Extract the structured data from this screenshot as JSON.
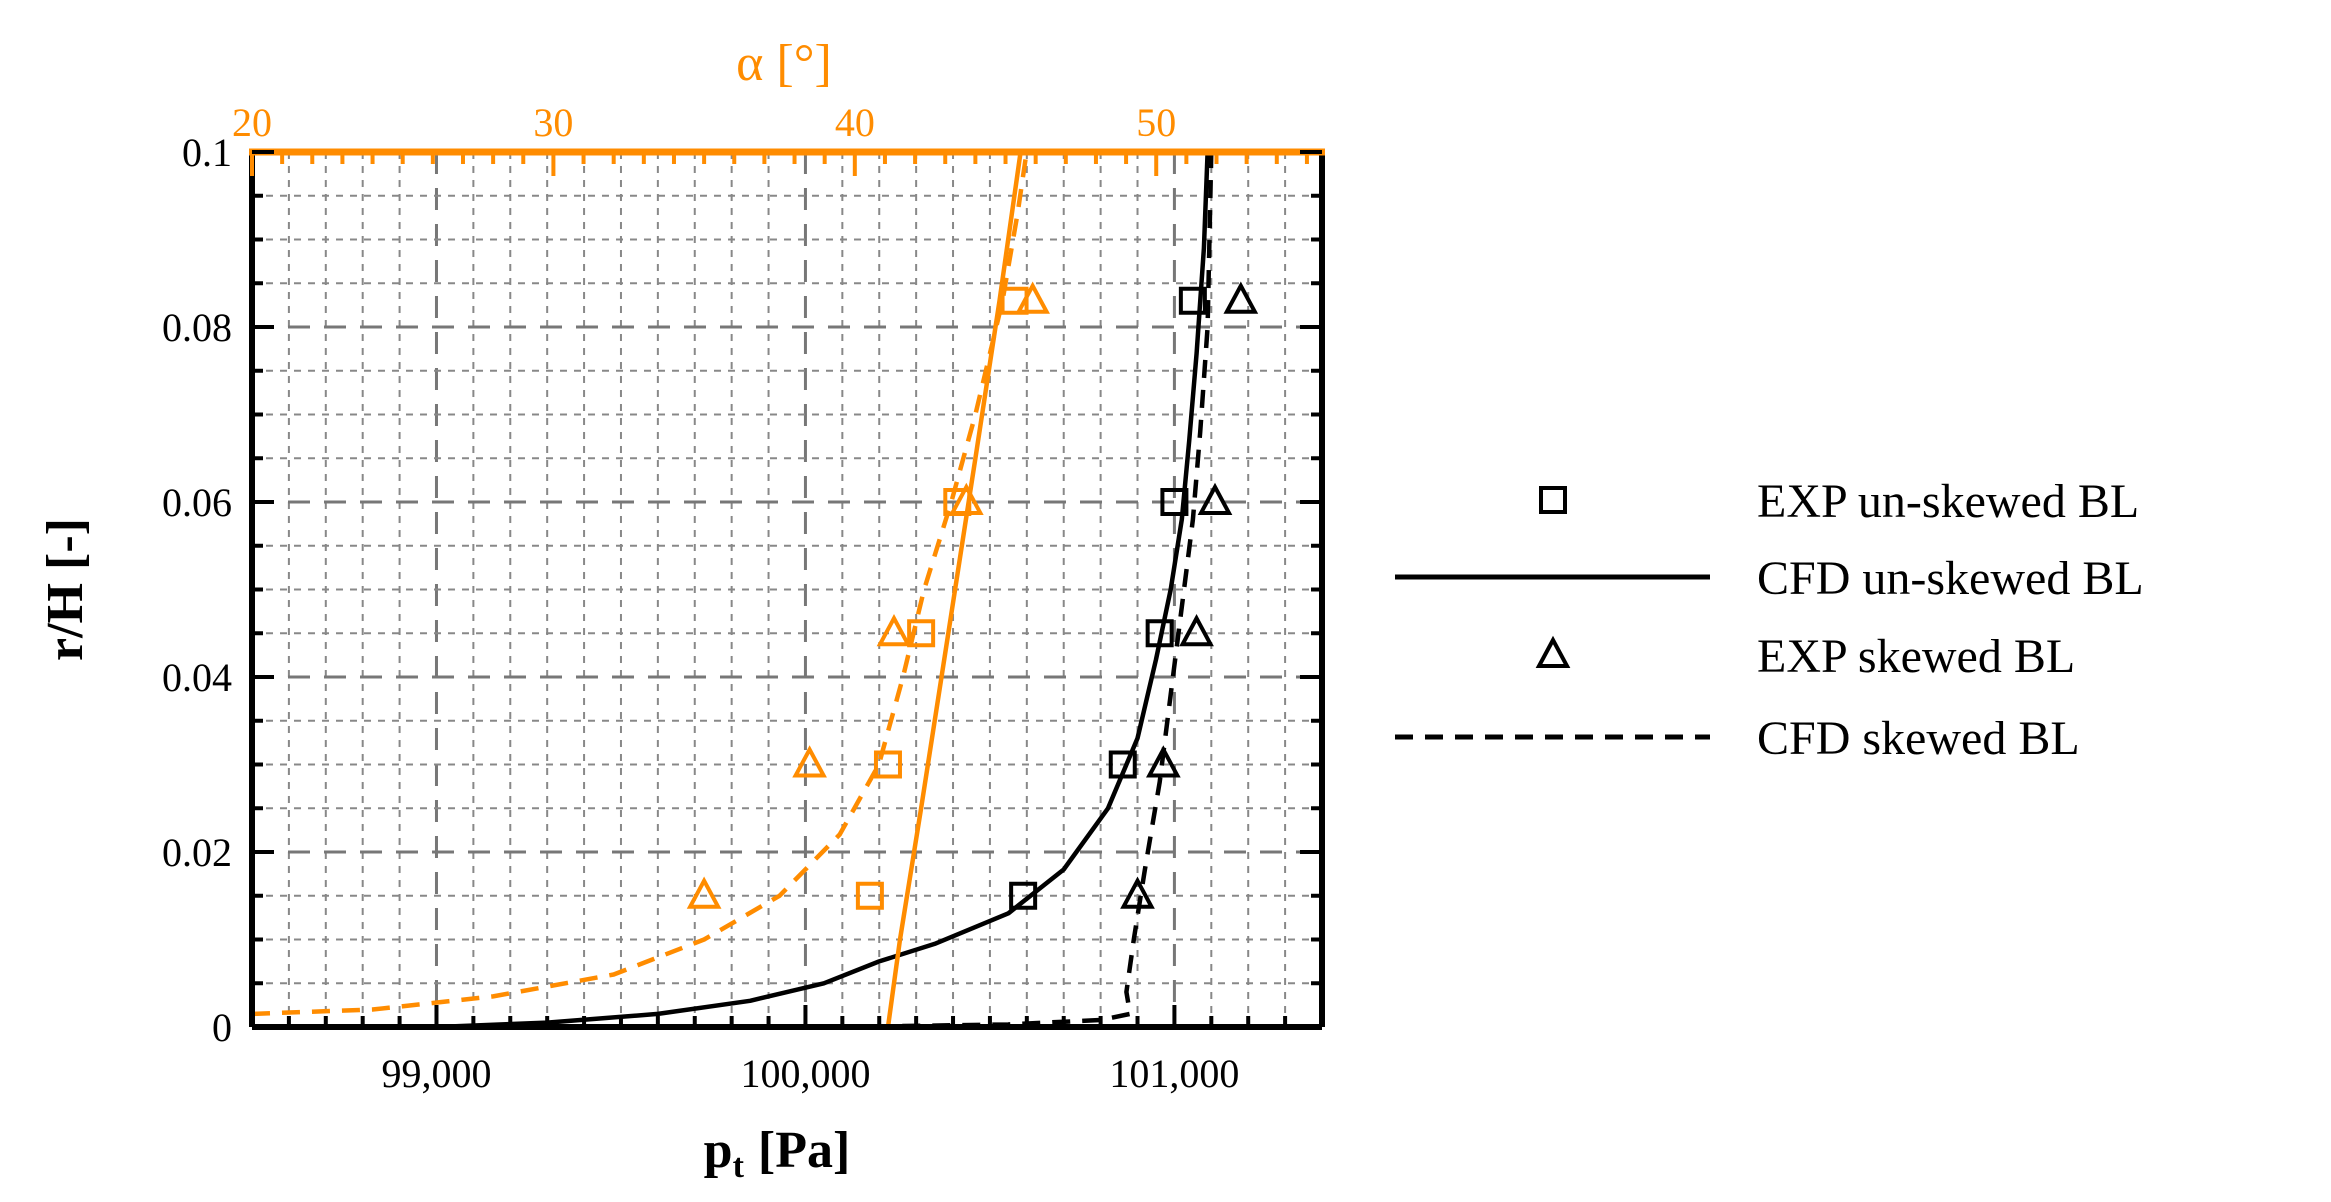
{
  "chart_data": {
    "type": "line",
    "x_bottom": {
      "label": "p",
      "label_sub": "t",
      "label_unit": "[Pa]",
      "range": [
        98500,
        101400
      ],
      "ticks": [
        99000,
        100000,
        101000
      ],
      "tick_labels": [
        "99,000",
        "100,000",
        "101,000"
      ],
      "minor_step": 100
    },
    "x_top": {
      "label": "α [°]",
      "range": [
        20,
        55.5
      ],
      "ticks": [
        20,
        30,
        40,
        50
      ],
      "tick_labels": [
        "20",
        "30",
        "40",
        "50"
      ],
      "minor_step": 1,
      "color": "#ff8c00"
    },
    "y": {
      "label": "r/H [-]",
      "range": [
        0,
        0.1
      ],
      "ticks": [
        0,
        0.02,
        0.04,
        0.06,
        0.08,
        0.1
      ],
      "tick_labels": [
        "0",
        "0.02",
        "0.04",
        "0.06",
        "0.08",
        "0.1"
      ],
      "minor_step": 0.005
    },
    "grid": true,
    "legend_position": "right",
    "legend": [
      {
        "label": "EXP un-skewed BL",
        "marker": "square",
        "line": "none"
      },
      {
        "label": "CFD un-skewed BL",
        "marker": "none",
        "line": "solid"
      },
      {
        "label": "EXP skewed BL",
        "marker": "triangle",
        "line": "none"
      },
      {
        "label": "CFD skewed BL",
        "marker": "none",
        "line": "dashed"
      }
    ],
    "series": [
      {
        "axis": "bottom",
        "color": "#000000",
        "marker": "square",
        "line": "none",
        "points": [
          [
            100590,
            0.015
          ],
          [
            100860,
            0.03
          ],
          [
            100960,
            0.045
          ],
          [
            101000,
            0.06
          ],
          [
            101050,
            0.083
          ]
        ]
      },
      {
        "axis": "bottom",
        "color": "#000000",
        "marker": "triangle",
        "line": "none",
        "points": [
          [
            100900,
            0.015
          ],
          [
            100970,
            0.03
          ],
          [
            101060,
            0.045
          ],
          [
            101110,
            0.06
          ],
          [
            101180,
            0.083
          ]
        ]
      },
      {
        "axis": "bottom",
        "color": "#000000",
        "marker": "none",
        "line": "solid",
        "points": [
          [
            99000,
            0.0
          ],
          [
            99300,
            0.0005
          ],
          [
            99600,
            0.0015
          ],
          [
            99850,
            0.003
          ],
          [
            100050,
            0.005
          ],
          [
            100200,
            0.0075
          ],
          [
            100350,
            0.0095
          ],
          [
            100550,
            0.013
          ],
          [
            100700,
            0.018
          ],
          [
            100820,
            0.025
          ],
          [
            100900,
            0.033
          ],
          [
            100950,
            0.042
          ],
          [
            100990,
            0.05
          ],
          [
            101020,
            0.058
          ],
          [
            101040,
            0.067
          ],
          [
            101060,
            0.077
          ],
          [
            101080,
            0.089
          ],
          [
            101090,
            0.1
          ]
        ]
      },
      {
        "axis": "bottom",
        "color": "#000000",
        "marker": "none",
        "line": "dashed",
        "points": [
          [
            100100,
            0.0
          ],
          [
            100550,
            0.0003
          ],
          [
            100800,
            0.0008
          ],
          [
            100880,
            0.0015
          ],
          [
            100870,
            0.004
          ],
          [
            100890,
            0.01
          ],
          [
            100920,
            0.018
          ],
          [
            100960,
            0.028
          ],
          [
            100990,
            0.038
          ],
          [
            101020,
            0.048
          ],
          [
            101050,
            0.058
          ],
          [
            101070,
            0.068
          ],
          [
            101090,
            0.08
          ],
          [
            101100,
            0.1
          ]
        ]
      },
      {
        "axis": "top",
        "color": "#ff8c00",
        "marker": "square",
        "line": "none",
        "points": [
          [
            40.5,
            0.015
          ],
          [
            41.1,
            0.03
          ],
          [
            42.2,
            0.045
          ],
          [
            43.4,
            0.06
          ],
          [
            45.3,
            0.083
          ]
        ]
      },
      {
        "axis": "top",
        "color": "#ff8c00",
        "marker": "triangle",
        "line": "none",
        "points": [
          [
            35.0,
            0.015
          ],
          [
            38.5,
            0.03
          ],
          [
            41.3,
            0.045
          ],
          [
            43.7,
            0.06
          ],
          [
            45.9,
            0.083
          ]
        ]
      },
      {
        "axis": "top",
        "color": "#ff8c00",
        "marker": "none",
        "line": "solid",
        "points": [
          [
            41.1,
            0.0
          ],
          [
            41.5,
            0.01
          ],
          [
            42.2,
            0.025
          ],
          [
            43.1,
            0.045
          ],
          [
            44.0,
            0.065
          ],
          [
            44.8,
            0.083
          ],
          [
            45.5,
            0.1
          ]
        ]
      },
      {
        "axis": "top",
        "color": "#ff8c00",
        "marker": "none",
        "line": "dashed",
        "points": [
          [
            20.0,
            0.0015
          ],
          [
            24.0,
            0.002
          ],
          [
            28.0,
            0.0035
          ],
          [
            32.0,
            0.006
          ],
          [
            35.0,
            0.01
          ],
          [
            37.5,
            0.015
          ],
          [
            39.5,
            0.022
          ],
          [
            40.8,
            0.03
          ],
          [
            41.6,
            0.04
          ],
          [
            42.3,
            0.05
          ],
          [
            43.2,
            0.06
          ],
          [
            44.0,
            0.07
          ],
          [
            44.9,
            0.083
          ],
          [
            45.4,
            0.093
          ],
          [
            45.7,
            0.1
          ]
        ]
      }
    ]
  }
}
